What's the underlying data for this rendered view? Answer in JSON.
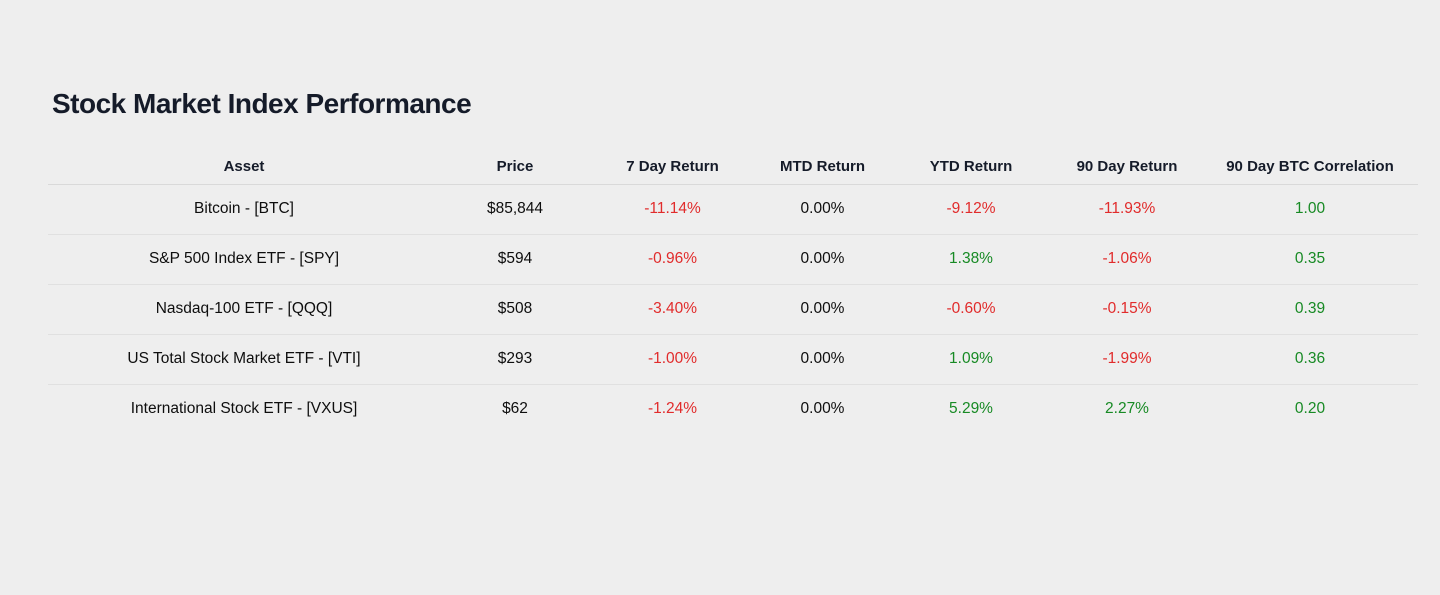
{
  "page": {
    "title": "Stock Market Index Performance"
  },
  "colors": {
    "background": "#eeeeee",
    "heading": "#151b29",
    "neutral_text": "#0e0e0e",
    "negative": "#e12b2b",
    "positive": "#178a24",
    "divider": "#e0e0e0"
  },
  "table": {
    "columns": [
      {
        "key": "asset",
        "label": "Asset"
      },
      {
        "key": "price",
        "label": "Price"
      },
      {
        "key": "7-day-return",
        "label": "7 Day Return"
      },
      {
        "key": "mtd-return",
        "label": "MTD Return"
      },
      {
        "key": "ytd-return",
        "label": "YTD Return"
      },
      {
        "key": "90-day-return",
        "label": "90 Day Return"
      },
      {
        "key": "90-day-btc-correlation",
        "label": "90 Day BTC Correlation"
      }
    ],
    "rows": [
      {
        "cells": [
          {
            "text": "Bitcoin - [BTC]",
            "tone": "neutral"
          },
          {
            "text": "$85,844",
            "tone": "neutral"
          },
          {
            "text": "-11.14%",
            "tone": "negative"
          },
          {
            "text": "0.00%",
            "tone": "neutral"
          },
          {
            "text": "-9.12%",
            "tone": "negative"
          },
          {
            "text": "-11.93%",
            "tone": "negative"
          },
          {
            "text": "1.00",
            "tone": "positive"
          }
        ]
      },
      {
        "cells": [
          {
            "text": "S&P 500 Index ETF - [SPY]",
            "tone": "neutral"
          },
          {
            "text": "$594",
            "tone": "neutral"
          },
          {
            "text": "-0.96%",
            "tone": "negative"
          },
          {
            "text": "0.00%",
            "tone": "neutral"
          },
          {
            "text": "1.38%",
            "tone": "positive"
          },
          {
            "text": "-1.06%",
            "tone": "negative"
          },
          {
            "text": "0.35",
            "tone": "positive"
          }
        ]
      },
      {
        "cells": [
          {
            "text": "Nasdaq-100 ETF - [QQQ]",
            "tone": "neutral"
          },
          {
            "text": "$508",
            "tone": "neutral"
          },
          {
            "text": "-3.40%",
            "tone": "negative"
          },
          {
            "text": "0.00%",
            "tone": "neutral"
          },
          {
            "text": "-0.60%",
            "tone": "negative"
          },
          {
            "text": "-0.15%",
            "tone": "negative"
          },
          {
            "text": "0.39",
            "tone": "positive"
          }
        ]
      },
      {
        "cells": [
          {
            "text": "US Total Stock Market ETF - [VTI]",
            "tone": "neutral"
          },
          {
            "text": "$293",
            "tone": "neutral"
          },
          {
            "text": "-1.00%",
            "tone": "negative"
          },
          {
            "text": "0.00%",
            "tone": "neutral"
          },
          {
            "text": "1.09%",
            "tone": "positive"
          },
          {
            "text": "-1.99%",
            "tone": "negative"
          },
          {
            "text": "0.36",
            "tone": "positive"
          }
        ]
      },
      {
        "cells": [
          {
            "text": "International Stock ETF - [VXUS]",
            "tone": "neutral"
          },
          {
            "text": "$62",
            "tone": "neutral"
          },
          {
            "text": "-1.24%",
            "tone": "negative"
          },
          {
            "text": "0.00%",
            "tone": "neutral"
          },
          {
            "text": "5.29%",
            "tone": "positive"
          },
          {
            "text": "2.27%",
            "tone": "positive"
          },
          {
            "text": "0.20",
            "tone": "positive"
          }
        ]
      }
    ]
  }
}
